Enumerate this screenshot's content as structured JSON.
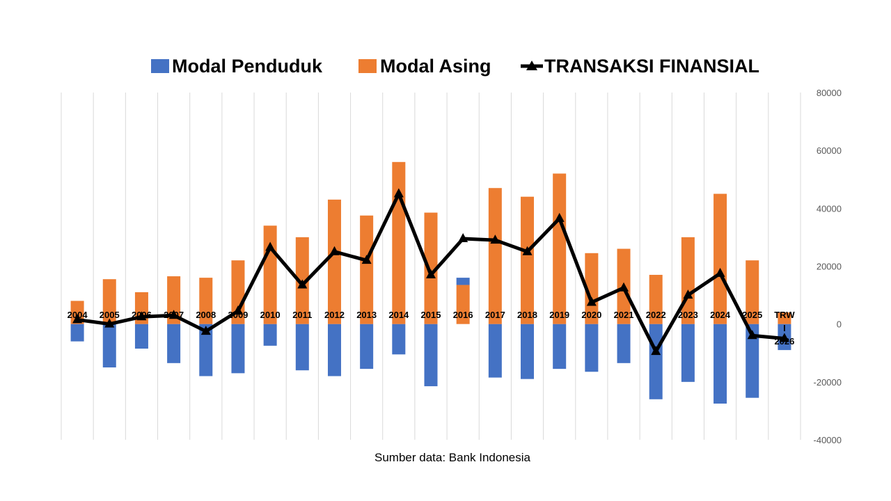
{
  "chart_data": {
    "type": "bar",
    "categories": [
      "2004",
      "2005",
      "2006",
      "2007",
      "2008",
      "2009",
      "2010",
      "2011",
      "2012",
      "2013",
      "2014",
      "2015",
      "2016",
      "2017",
      "2018",
      "2019",
      "2020",
      "2021",
      "2022",
      "2023",
      "2024",
      "2025",
      "TRW I 2026"
    ],
    "category_lines": [
      [
        "2004"
      ],
      [
        "2005"
      ],
      [
        "2006"
      ],
      [
        "2007"
      ],
      [
        "2008"
      ],
      [
        "2009"
      ],
      [
        "2010"
      ],
      [
        "2011"
      ],
      [
        "2012"
      ],
      [
        "2013"
      ],
      [
        "2014"
      ],
      [
        "2015"
      ],
      [
        "2016"
      ],
      [
        "2017"
      ],
      [
        "2018"
      ],
      [
        "2019"
      ],
      [
        "2020"
      ],
      [
        "2021"
      ],
      [
        "2022"
      ],
      [
        "2023"
      ],
      [
        "2024"
      ],
      [
        "2025"
      ],
      [
        "TRW",
        "I",
        "2026"
      ]
    ],
    "series": [
      {
        "name": "Modal Penduduk",
        "kind": "bar",
        "color": "#4472C4",
        "values": [
          -6000,
          -15000,
          -8500,
          -13500,
          -18000,
          -17000,
          -7500,
          -16000,
          -18000,
          -15500,
          -10500,
          -21500,
          2500,
          -18500,
          -19000,
          -15500,
          -16500,
          -13500,
          -26000,
          -20000,
          -27500,
          -25500,
          -9000
        ]
      },
      {
        "name": "Modal Asing",
        "kind": "bar",
        "color": "#ED7D31",
        "values": [
          8000,
          15500,
          11000,
          16500,
          16000,
          22000,
          34000,
          30000,
          43000,
          37500,
          56000,
          38500,
          13500,
          47000,
          44000,
          52000,
          24500,
          26000,
          17000,
          30000,
          45000,
          22000,
          4000
        ]
      },
      {
        "name": "TRANSAKSI FINANSIAL",
        "kind": "line",
        "color": "#000000",
        "values": [
          1500,
          0,
          2500,
          3000,
          -2500,
          4500,
          26500,
          13500,
          25000,
          22000,
          45000,
          17000,
          29500,
          29000,
          25000,
          36500,
          7500,
          12500,
          -9500,
          10000,
          17500,
          -4000,
          -5000
        ]
      }
    ],
    "y_ticks": [
      "80000",
      "60000",
      "40000",
      "20000",
      "0",
      "-20000",
      "-40000"
    ],
    "ylim": [
      -40000,
      80000
    ],
    "y_axis_position": "right",
    "legend_placement": "top",
    "grid": "vertical",
    "title": "",
    "xlabel": "",
    "ylabel": ""
  },
  "footer": {
    "source": "Sumber data: Bank Indonesia"
  }
}
